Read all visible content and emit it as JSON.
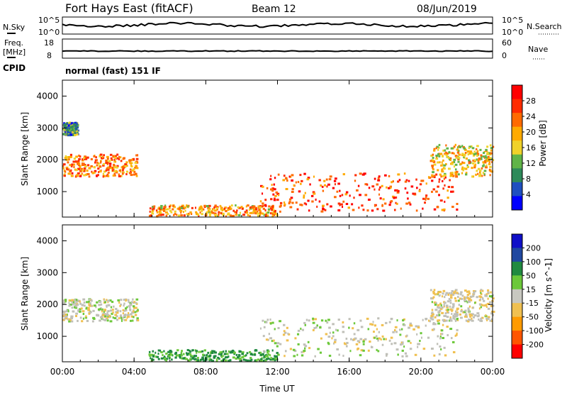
{
  "header": {
    "station": "Fort Hays East (fitACF)",
    "beam": "Beam 12",
    "date": "08/Jun/2019"
  },
  "summary_panels": {
    "nsky": {
      "label": "N.Sky",
      "ticks": [
        "10^5",
        "10^0"
      ]
    },
    "nsearch": {
      "label": "N.Search",
      "ticks": [
        "10^5",
        "10^0"
      ]
    },
    "freq": {
      "label": "Freq.",
      "unit": "[MHz]",
      "ticks": [
        "18",
        "8"
      ]
    },
    "nave": {
      "label": "Nave",
      "ticks": [
        "60",
        "0"
      ]
    },
    "cpid": {
      "label": "CPID",
      "value": "normal (fast) 151 IF"
    }
  },
  "colors": {
    "power_scale": [
      "#0000ff",
      "#1f4fc0",
      "#2e8a5a",
      "#60b448",
      "#f0d22a",
      "#ffaa00",
      "#ff6a00",
      "#ff2b00",
      "#ff0000"
    ],
    "velocity_scale": [
      "#1010c8",
      "#2048a0",
      "#208a40",
      "#6cc83a",
      "#c8c8c0",
      "#f0c050",
      "#ff9a00",
      "#ff5500",
      "#ff0000"
    ],
    "grey_scatter": "#c0c0b8"
  },
  "chart_data": [
    {
      "type": "heatmap",
      "title": "Power",
      "xlabel": "Time UT",
      "ylabel": "Slant Range [km]",
      "x_ticks": [
        "00:00",
        "04:00",
        "08:00",
        "12:00",
        "16:00",
        "20:00",
        "00:00"
      ],
      "y_ticks": [
        "1000",
        "2000",
        "3000",
        "4000"
      ],
      "ylim": [
        200,
        4500
      ],
      "colorbar": {
        "label": "Power [dB]",
        "ticks": [
          "4",
          "8",
          "12",
          "16",
          "20",
          "24",
          "28"
        ]
      },
      "features": [
        {
          "time_start_h": 0.0,
          "time_end_h": 4.2,
          "range_km": [
            1500,
            2200
          ],
          "level_db": 22
        },
        {
          "time_start_h": 0.0,
          "time_end_h": 0.8,
          "range_km": [
            2800,
            3200
          ],
          "level_db": 10
        },
        {
          "time_start_h": 4.8,
          "time_end_h": 12.0,
          "range_km": [
            250,
            600
          ],
          "level_db": 20
        },
        {
          "time_start_h": 11.0,
          "time_end_h": 22.0,
          "range_km": [
            400,
            1600
          ],
          "level_db": 26
        },
        {
          "time_start_h": 20.5,
          "time_end_h": 24.0,
          "range_km": [
            1500,
            2500
          ],
          "level_db": 18
        }
      ]
    },
    {
      "type": "heatmap",
      "title": "Velocity",
      "xlabel": "Time UT",
      "ylabel": "Slant Range [km]",
      "x_ticks": [
        "00:00",
        "04:00",
        "08:00",
        "12:00",
        "16:00",
        "20:00",
        "00:00"
      ],
      "y_ticks": [
        "1000",
        "2000",
        "3000",
        "4000"
      ],
      "ylim": [
        200,
        4500
      ],
      "colorbar": {
        "label": "Velocity [m s^-1]",
        "ticks": [
          "200",
          "100",
          "50",
          "15",
          "-15",
          "-50",
          "-100",
          "-200"
        ]
      },
      "features": [
        {
          "time_start_h": 0.0,
          "time_end_h": 4.2,
          "range_km": [
            1500,
            2200
          ],
          "velocity_ms": 0
        },
        {
          "time_start_h": 4.8,
          "time_end_h": 12.0,
          "range_km": [
            250,
            600
          ],
          "velocity_ms": 60
        },
        {
          "time_start_h": 11.0,
          "time_end_h": 22.0,
          "range_km": [
            400,
            1600
          ],
          "velocity_ms": 0
        },
        {
          "time_start_h": 20.5,
          "time_end_h": 24.0,
          "range_km": [
            1500,
            2500
          ],
          "velocity_ms": -10
        }
      ]
    }
  ]
}
